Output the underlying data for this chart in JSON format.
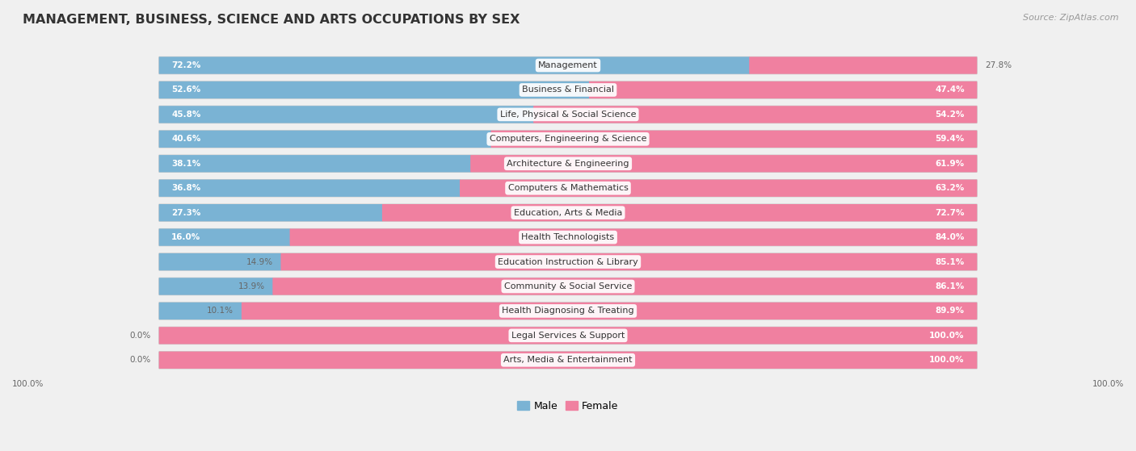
{
  "title": "MANAGEMENT, BUSINESS, SCIENCE AND ARTS OCCUPATIONS BY SEX",
  "source": "Source: ZipAtlas.com",
  "categories": [
    "Management",
    "Business & Financial",
    "Life, Physical & Social Science",
    "Computers, Engineering & Science",
    "Architecture & Engineering",
    "Computers & Mathematics",
    "Education, Arts & Media",
    "Health Technologists",
    "Education Instruction & Library",
    "Community & Social Service",
    "Health Diagnosing & Treating",
    "Legal Services & Support",
    "Arts, Media & Entertainment"
  ],
  "male": [
    72.2,
    52.6,
    45.8,
    40.6,
    38.1,
    36.8,
    27.3,
    16.0,
    14.9,
    13.9,
    10.1,
    0.0,
    0.0
  ],
  "female": [
    27.8,
    47.4,
    54.2,
    59.4,
    61.9,
    63.2,
    72.7,
    84.0,
    85.1,
    86.1,
    89.9,
    100.0,
    100.0
  ],
  "male_color": "#7ab3d4",
  "female_color": "#f080a0",
  "male_label": "Male",
  "female_label": "Female",
  "background_color": "#f0f0f0",
  "bar_background": "#e8e8e8",
  "title_fontsize": 11.5,
  "label_fontsize": 8,
  "pct_fontsize": 7.5,
  "legend_fontsize": 9
}
